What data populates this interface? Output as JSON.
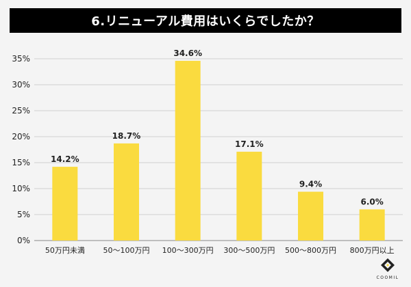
{
  "chart_data": {
    "type": "bar",
    "title": "6.リニューアル費用はいくらでしたか？",
    "categories": [
      "50万円未満",
      "50〜100万円",
      "100〜300万円",
      "300〜500万円",
      "500〜800万円",
      "800万円以上"
    ],
    "values": [
      14.2,
      18.7,
      34.6,
      17.1,
      9.4,
      6.0
    ],
    "data_labels": [
      "14.2%",
      "18.7%",
      "34.6%",
      "17.1%",
      "9.4%",
      "6.0%"
    ],
    "y_ticks": [
      "0%",
      "5%",
      "10%",
      "15%",
      "20%",
      "25%",
      "30%",
      "35%"
    ],
    "ylim": [
      0,
      35
    ],
    "grid": true,
    "legend": "none",
    "bar_color": "#fadb3f",
    "xlabel": "",
    "ylabel": ""
  },
  "logo": {
    "text": "COOMIL"
  }
}
